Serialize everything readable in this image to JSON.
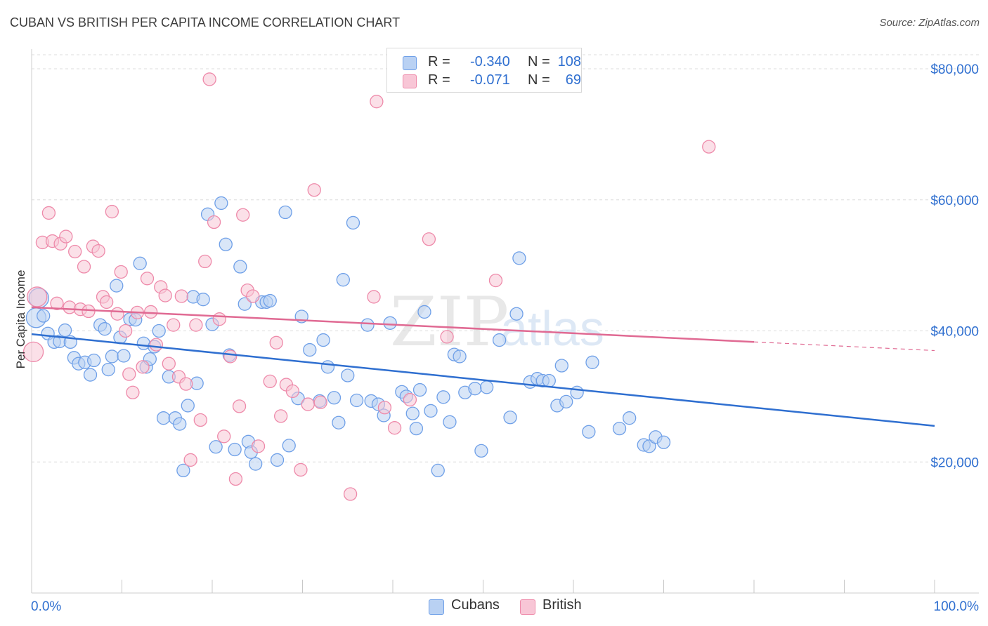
{
  "title": "CUBAN VS BRITISH PER CAPITA INCOME CORRELATION CHART",
  "source": "Source: ZipAtlas.com",
  "watermark": {
    "zip": "ZIP",
    "atlas": "atlas"
  },
  "legend": {
    "rows": [
      {
        "r_label": "R =",
        "r_value": "-0.340",
        "n_label": "N =",
        "n_value": "108",
        "color": "#6fa0e8",
        "fill": "#b9d1f3"
      },
      {
        "r_label": "R =",
        "r_value": "-0.071",
        "n_label": "N =",
        "n_value": "69",
        "color": "#ee8aaa",
        "fill": "#f8c6d6"
      }
    ]
  },
  "bottom_legend": [
    {
      "label": "Cubans",
      "fill": "#b9d1f3",
      "color": "#6fa0e8"
    },
    {
      "label": "British",
      "fill": "#f8c6d6",
      "color": "#ee8aaa"
    }
  ],
  "chart_data": {
    "type": "scatter",
    "title": "CUBAN VS BRITISH PER CAPITA INCOME CORRELATION CHART",
    "xlabel": "",
    "ylabel": "Per Capita Income",
    "xlim": [
      0,
      100
    ],
    "ylim": [
      0,
      83000
    ],
    "x_tick_labels": [
      "0.0%",
      "100.0%"
    ],
    "y_ticks": [
      20000,
      40000,
      60000,
      80000
    ],
    "y_tick_labels": [
      "$20,000",
      "$40,000",
      "$60,000",
      "$80,000"
    ],
    "grid": true,
    "legend_position": "top-center",
    "series": [
      {
        "name": "Cubans",
        "color": "#6fa0e8",
        "fill": "#b9d1f3",
        "line_color": "#2f6fd0",
        "trend": {
          "x0": 0,
          "y0": 39500,
          "x1": 100,
          "y1": 25500,
          "solid_until": 100
        },
        "points": [
          [
            0.5,
            42000
          ],
          [
            0.8,
            45000
          ],
          [
            1.3,
            42300
          ],
          [
            1.8,
            39600
          ],
          [
            2.5,
            38300
          ],
          [
            3.1,
            38400
          ],
          [
            3.7,
            40100
          ],
          [
            4.3,
            38300
          ],
          [
            4.7,
            35900
          ],
          [
            5.2,
            35000
          ],
          [
            5.9,
            35200
          ],
          [
            6.5,
            33300
          ],
          [
            6.9,
            35500
          ],
          [
            7.6,
            40900
          ],
          [
            8.1,
            40300
          ],
          [
            8.5,
            34100
          ],
          [
            8.9,
            36100
          ],
          [
            9.4,
            46900
          ],
          [
            9.8,
            39000
          ],
          [
            10.2,
            36200
          ],
          [
            10.9,
            41800
          ],
          [
            11.5,
            41700
          ],
          [
            12.0,
            50300
          ],
          [
            12.4,
            38100
          ],
          [
            12.7,
            34500
          ],
          [
            13.1,
            35700
          ],
          [
            13.6,
            37600
          ],
          [
            14.1,
            40000
          ],
          [
            14.6,
            26700
          ],
          [
            15.2,
            33000
          ],
          [
            15.9,
            26700
          ],
          [
            16.4,
            25800
          ],
          [
            16.8,
            18700
          ],
          [
            17.3,
            28600
          ],
          [
            17.9,
            45200
          ],
          [
            18.3,
            32000
          ],
          [
            19.0,
            44800
          ],
          [
            19.5,
            57800
          ],
          [
            20.0,
            41000
          ],
          [
            20.4,
            22300
          ],
          [
            21.0,
            59500
          ],
          [
            21.5,
            53200
          ],
          [
            21.9,
            36300
          ],
          [
            22.5,
            21900
          ],
          [
            23.1,
            49800
          ],
          [
            23.6,
            44100
          ],
          [
            24.0,
            23100
          ],
          [
            24.3,
            21500
          ],
          [
            24.8,
            19700
          ],
          [
            25.5,
            44400
          ],
          [
            26.0,
            44400
          ],
          [
            26.4,
            44600
          ],
          [
            27.2,
            20300
          ],
          [
            28.1,
            58100
          ],
          [
            28.5,
            22500
          ],
          [
            29.5,
            29700
          ],
          [
            29.9,
            42200
          ],
          [
            30.8,
            37100
          ],
          [
            31.9,
            29300
          ],
          [
            32.3,
            38600
          ],
          [
            32.8,
            34500
          ],
          [
            33.5,
            29800
          ],
          [
            34.0,
            26000
          ],
          [
            34.5,
            47800
          ],
          [
            35.0,
            33200
          ],
          [
            35.6,
            56500
          ],
          [
            36.0,
            29400
          ],
          [
            37.2,
            40900
          ],
          [
            37.6,
            29300
          ],
          [
            38.4,
            28800
          ],
          [
            39.0,
            27100
          ],
          [
            39.7,
            41200
          ],
          [
            41.0,
            30700
          ],
          [
            41.5,
            30000
          ],
          [
            42.2,
            27400
          ],
          [
            42.6,
            25100
          ],
          [
            43.0,
            31000
          ],
          [
            43.5,
            42900
          ],
          [
            44.2,
            27800
          ],
          [
            45.0,
            18700
          ],
          [
            45.6,
            29900
          ],
          [
            46.3,
            26100
          ],
          [
            46.8,
            36400
          ],
          [
            47.4,
            36100
          ],
          [
            48.0,
            30600
          ],
          [
            49.1,
            31200
          ],
          [
            49.8,
            21700
          ],
          [
            50.4,
            31400
          ],
          [
            51.8,
            38600
          ],
          [
            53.0,
            26800
          ],
          [
            53.7,
            42600
          ],
          [
            54.0,
            51100
          ],
          [
            55.2,
            32200
          ],
          [
            56.0,
            32700
          ],
          [
            56.6,
            32400
          ],
          [
            57.3,
            32400
          ],
          [
            58.2,
            28600
          ],
          [
            58.7,
            34700
          ],
          [
            59.2,
            29200
          ],
          [
            60.4,
            30600
          ],
          [
            62.1,
            35200
          ],
          [
            61.7,
            24600
          ],
          [
            65.1,
            25100
          ],
          [
            66.2,
            26700
          ],
          [
            67.8,
            22600
          ],
          [
            68.4,
            22400
          ],
          [
            69.1,
            23800
          ],
          [
            70.0,
            23000
          ]
        ]
      },
      {
        "name": "British",
        "color": "#ee8aaa",
        "fill": "#f8c6d6",
        "line_color": "#e06a93",
        "trend": {
          "x0": 0,
          "y0": 43600,
          "x1": 100,
          "y1": 37000,
          "solid_until": 80
        },
        "points": [
          [
            0.2,
            36800
          ],
          [
            0.6,
            45200
          ],
          [
            1.2,
            53500
          ],
          [
            1.9,
            58000
          ],
          [
            2.3,
            53700
          ],
          [
            2.8,
            44200
          ],
          [
            3.2,
            53300
          ],
          [
            3.8,
            54400
          ],
          [
            4.2,
            43600
          ],
          [
            4.8,
            52100
          ],
          [
            5.4,
            43300
          ],
          [
            5.8,
            49800
          ],
          [
            6.3,
            43000
          ],
          [
            6.8,
            52900
          ],
          [
            7.4,
            52200
          ],
          [
            7.9,
            45200
          ],
          [
            8.3,
            44400
          ],
          [
            8.9,
            58200
          ],
          [
            9.5,
            42600
          ],
          [
            9.9,
            49000
          ],
          [
            10.4,
            40000
          ],
          [
            10.8,
            33400
          ],
          [
            11.2,
            30600
          ],
          [
            11.7,
            42800
          ],
          [
            12.3,
            34500
          ],
          [
            12.8,
            48000
          ],
          [
            13.2,
            42900
          ],
          [
            13.8,
            37900
          ],
          [
            14.3,
            46700
          ],
          [
            14.8,
            45400
          ],
          [
            15.2,
            35000
          ],
          [
            15.7,
            40900
          ],
          [
            16.3,
            33000
          ],
          [
            16.6,
            45300
          ],
          [
            17.1,
            31900
          ],
          [
            17.6,
            20300
          ],
          [
            18.2,
            40900
          ],
          [
            18.7,
            26400
          ],
          [
            19.2,
            50600
          ],
          [
            19.7,
            78400
          ],
          [
            20.2,
            56600
          ],
          [
            20.8,
            41800
          ],
          [
            21.3,
            23900
          ],
          [
            22.0,
            36100
          ],
          [
            22.6,
            17400
          ],
          [
            23.0,
            28500
          ],
          [
            23.4,
            57700
          ],
          [
            23.9,
            46200
          ],
          [
            24.5,
            45300
          ],
          [
            25.1,
            22400
          ],
          [
            26.4,
            32300
          ],
          [
            27.1,
            38200
          ],
          [
            27.6,
            27000
          ],
          [
            28.2,
            31800
          ],
          [
            28.9,
            30800
          ],
          [
            29.8,
            18800
          ],
          [
            30.6,
            28800
          ],
          [
            31.3,
            61500
          ],
          [
            32.0,
            29100
          ],
          [
            35.3,
            15100
          ],
          [
            37.9,
            45200
          ],
          [
            38.2,
            75000
          ],
          [
            39.1,
            28300
          ],
          [
            40.2,
            25200
          ],
          [
            41.9,
            29500
          ],
          [
            44.0,
            54000
          ],
          [
            46.0,
            39100
          ],
          [
            51.4,
            47700
          ],
          [
            75.0,
            68100
          ]
        ]
      }
    ]
  }
}
